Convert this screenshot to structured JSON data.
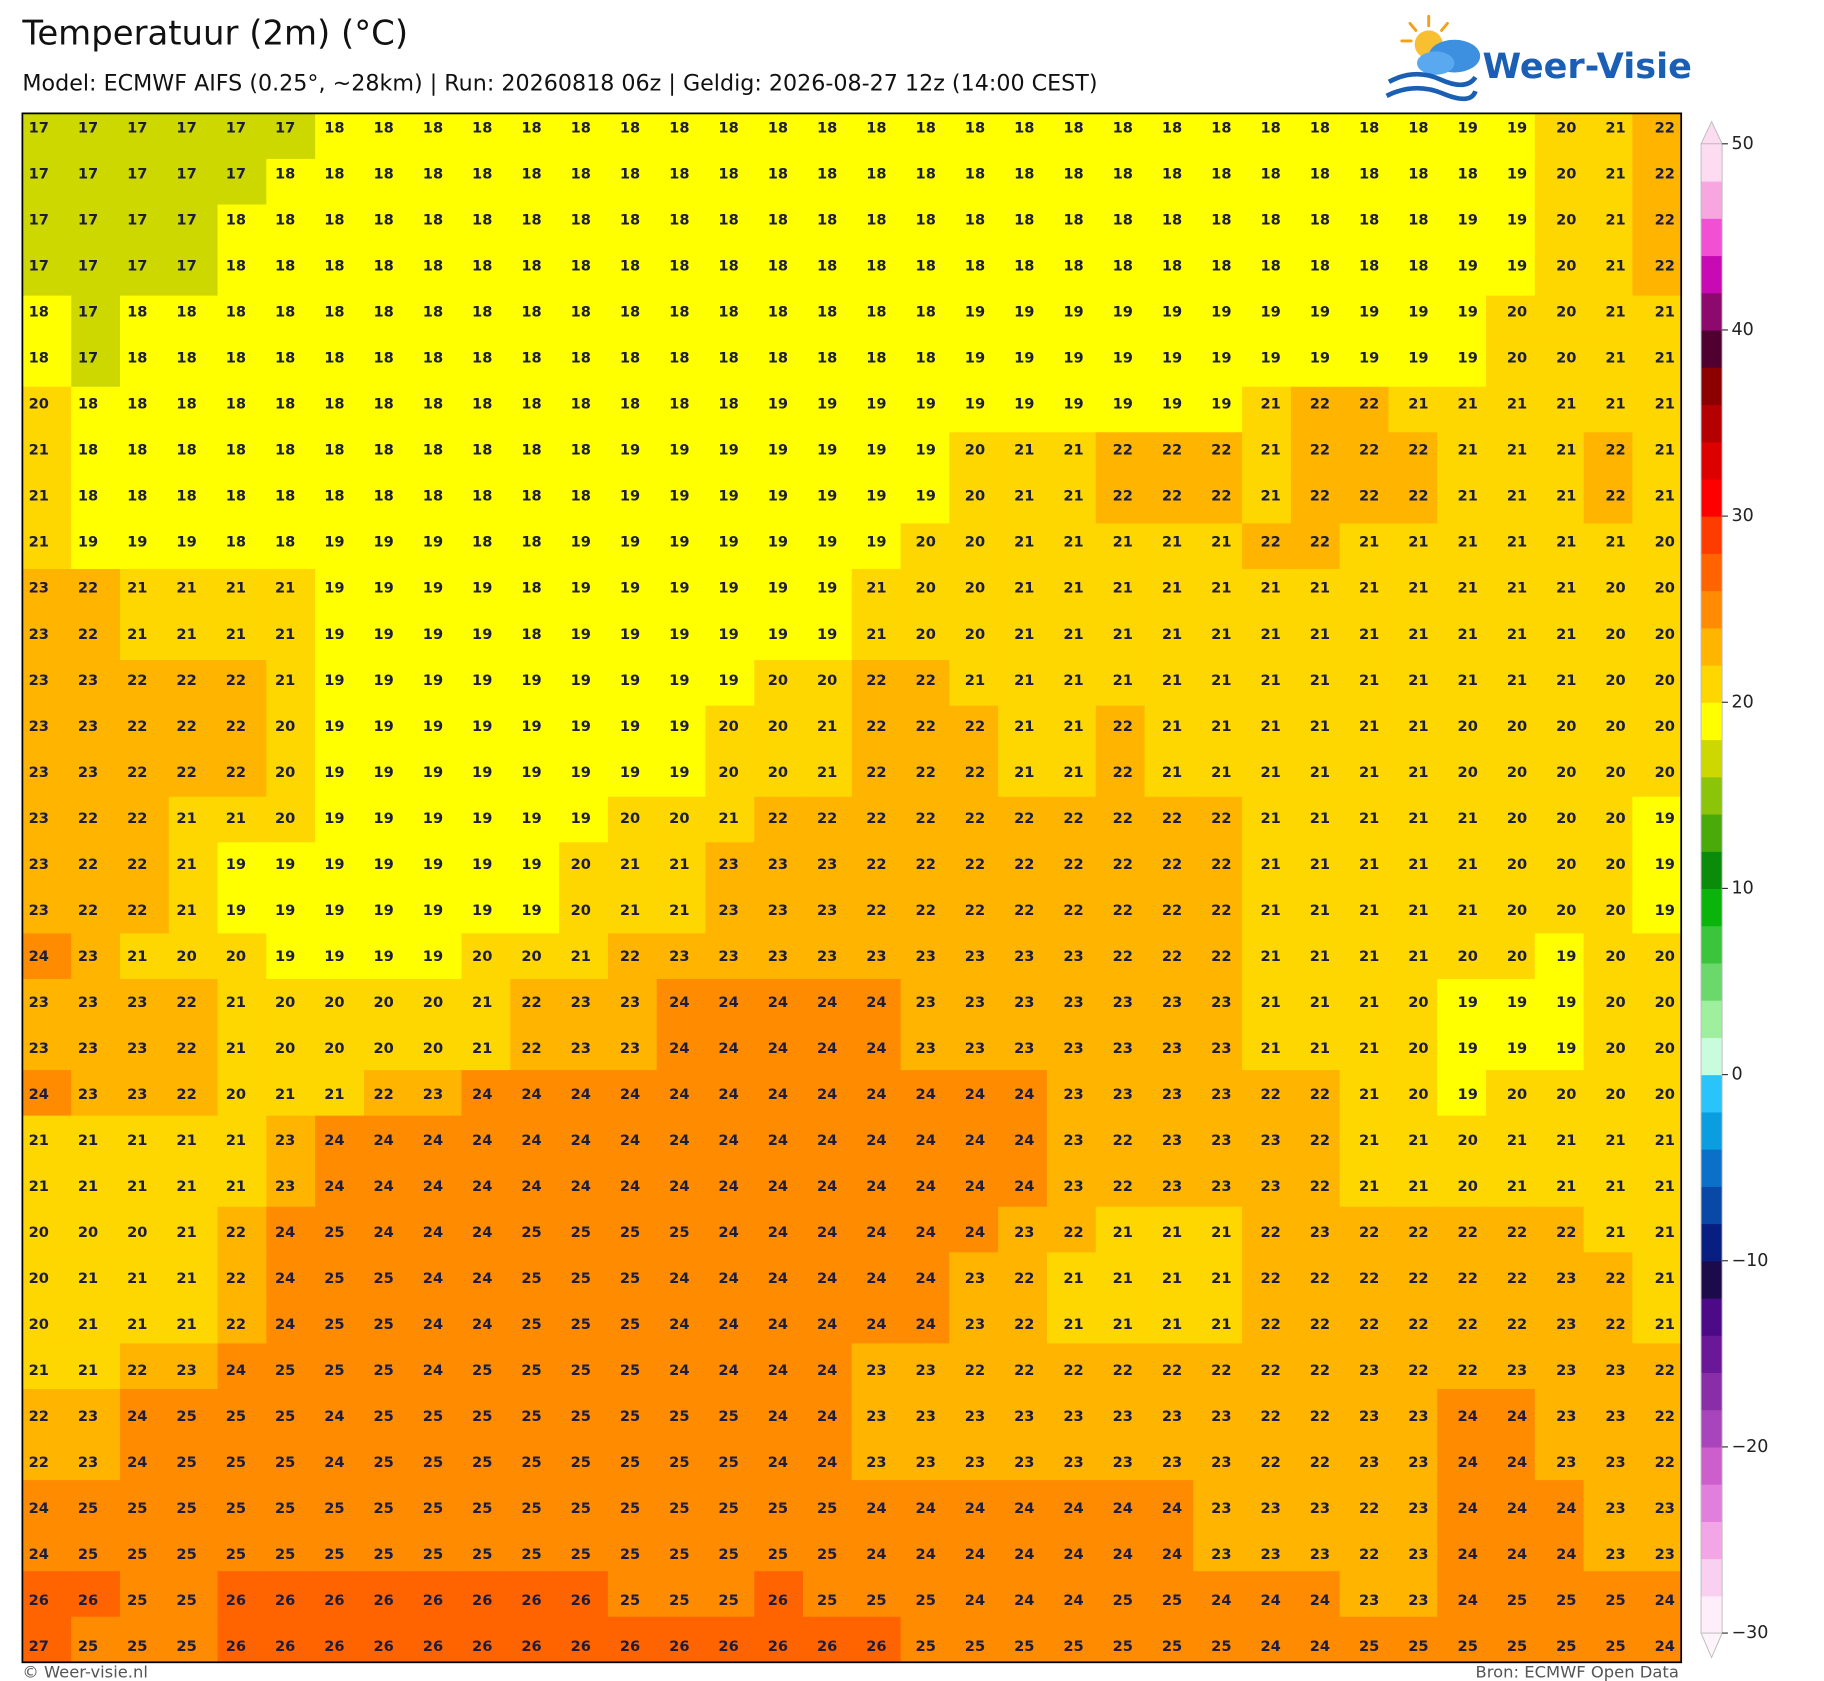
{
  "map": {
    "title": "Temperatuur (2m) (°C)",
    "subtitle": "Model: ECMWF AIFS (0.25°, ~28km)  |  Run: 20260818 06z  |  Geldig: 2026-08-27 12z (14:00 CEST)",
    "logo": "Weer-Visie",
    "footer_left": "© Weer-visie.nl",
    "footer_right": "Bron: ECMWF Open Data",
    "grid": [
      [
        17,
        17,
        17,
        17,
        17,
        17,
        18,
        18,
        18,
        18,
        18,
        18,
        18,
        18,
        18,
        18,
        18,
        18,
        18,
        18,
        18,
        18,
        18,
        18,
        18,
        18,
        18,
        18,
        18,
        19,
        19,
        20,
        21,
        22
      ],
      [
        17,
        17,
        17,
        17,
        17,
        18,
        18,
        18,
        18,
        18,
        18,
        18,
        18,
        18,
        18,
        18,
        18,
        18,
        18,
        18,
        18,
        18,
        18,
        18,
        18,
        18,
        18,
        18,
        18,
        18,
        19,
        20,
        21,
        22
      ],
      [
        17,
        17,
        17,
        17,
        18,
        18,
        18,
        18,
        18,
        18,
        18,
        18,
        18,
        18,
        18,
        18,
        18,
        18,
        18,
        18,
        18,
        18,
        18,
        18,
        18,
        18,
        18,
        18,
        18,
        19,
        19,
        20,
        21,
        22
      ],
      [
        17,
        17,
        17,
        17,
        18,
        18,
        18,
        18,
        18,
        18,
        18,
        18,
        18,
        18,
        18,
        18,
        18,
        18,
        18,
        18,
        18,
        18,
        18,
        18,
        18,
        18,
        18,
        18,
        18,
        19,
        19,
        20,
        21,
        22
      ],
      [
        18,
        17,
        18,
        18,
        18,
        18,
        18,
        18,
        18,
        18,
        18,
        18,
        18,
        18,
        18,
        18,
        18,
        18,
        18,
        19,
        19,
        19,
        19,
        19,
        19,
        19,
        19,
        19,
        19,
        19,
        20,
        20,
        21,
        21
      ],
      [
        18,
        17,
        18,
        18,
        18,
        18,
        18,
        18,
        18,
        18,
        18,
        18,
        18,
        18,
        18,
        18,
        18,
        18,
        18,
        19,
        19,
        19,
        19,
        19,
        19,
        19,
        19,
        19,
        19,
        19,
        20,
        20,
        21,
        21
      ],
      [
        20,
        18,
        18,
        18,
        18,
        18,
        18,
        18,
        18,
        18,
        18,
        18,
        18,
        18,
        18,
        19,
        19,
        19,
        19,
        19,
        19,
        19,
        19,
        19,
        19,
        21,
        22,
        22,
        21,
        21,
        21,
        21,
        21,
        21
      ],
      [
        21,
        18,
        18,
        18,
        18,
        18,
        18,
        18,
        18,
        18,
        18,
        18,
        19,
        19,
        19,
        19,
        19,
        19,
        19,
        20,
        21,
        21,
        22,
        22,
        22,
        21,
        22,
        22,
        22,
        21,
        21,
        21,
        22,
        21
      ],
      [
        21,
        18,
        18,
        18,
        18,
        18,
        18,
        18,
        18,
        18,
        18,
        18,
        19,
        19,
        19,
        19,
        19,
        19,
        19,
        20,
        21,
        21,
        22,
        22,
        22,
        21,
        22,
        22,
        22,
        21,
        21,
        21,
        22,
        21
      ],
      [
        21,
        19,
        19,
        19,
        18,
        18,
        19,
        19,
        19,
        18,
        18,
        19,
        19,
        19,
        19,
        19,
        19,
        19,
        20,
        20,
        21,
        21,
        21,
        21,
        21,
        22,
        22,
        21,
        21,
        21,
        21,
        21,
        21,
        20
      ],
      [
        23,
        22,
        21,
        21,
        21,
        21,
        19,
        19,
        19,
        19,
        18,
        19,
        19,
        19,
        19,
        19,
        19,
        21,
        20,
        20,
        21,
        21,
        21,
        21,
        21,
        21,
        21,
        21,
        21,
        21,
        21,
        21,
        20,
        20
      ],
      [
        23,
        22,
        21,
        21,
        21,
        21,
        19,
        19,
        19,
        19,
        18,
        19,
        19,
        19,
        19,
        19,
        19,
        21,
        20,
        20,
        21,
        21,
        21,
        21,
        21,
        21,
        21,
        21,
        21,
        21,
        21,
        21,
        20,
        20
      ],
      [
        23,
        23,
        22,
        22,
        22,
        21,
        19,
        19,
        19,
        19,
        19,
        19,
        19,
        19,
        19,
        20,
        20,
        22,
        22,
        21,
        21,
        21,
        21,
        21,
        21,
        21,
        21,
        21,
        21,
        21,
        21,
        21,
        20,
        20
      ],
      [
        23,
        23,
        22,
        22,
        22,
        20,
        19,
        19,
        19,
        19,
        19,
        19,
        19,
        19,
        20,
        20,
        21,
        22,
        22,
        22,
        21,
        21,
        22,
        21,
        21,
        21,
        21,
        21,
        21,
        20,
        20,
        20,
        20,
        20
      ],
      [
        23,
        23,
        22,
        22,
        22,
        20,
        19,
        19,
        19,
        19,
        19,
        19,
        19,
        19,
        20,
        20,
        21,
        22,
        22,
        22,
        21,
        21,
        22,
        21,
        21,
        21,
        21,
        21,
        21,
        20,
        20,
        20,
        20,
        20
      ],
      [
        23,
        22,
        22,
        21,
        21,
        20,
        19,
        19,
        19,
        19,
        19,
        19,
        20,
        20,
        21,
        22,
        22,
        22,
        22,
        22,
        22,
        22,
        22,
        22,
        22,
        21,
        21,
        21,
        21,
        21,
        20,
        20,
        20,
        19
      ],
      [
        23,
        22,
        22,
        21,
        19,
        19,
        19,
        19,
        19,
        19,
        19,
        20,
        21,
        21,
        23,
        23,
        23,
        22,
        22,
        22,
        22,
        22,
        22,
        22,
        22,
        21,
        21,
        21,
        21,
        21,
        20,
        20,
        20,
        19
      ],
      [
        23,
        22,
        22,
        21,
        19,
        19,
        19,
        19,
        19,
        19,
        19,
        20,
        21,
        21,
        23,
        23,
        23,
        22,
        22,
        22,
        22,
        22,
        22,
        22,
        22,
        21,
        21,
        21,
        21,
        21,
        20,
        20,
        20,
        19
      ],
      [
        24,
        23,
        21,
        20,
        20,
        19,
        19,
        19,
        19,
        20,
        20,
        21,
        22,
        23,
        23,
        23,
        23,
        23,
        23,
        23,
        23,
        23,
        22,
        22,
        22,
        21,
        21,
        21,
        21,
        20,
        20,
        19,
        20,
        20
      ],
      [
        23,
        23,
        23,
        22,
        21,
        20,
        20,
        20,
        20,
        21,
        22,
        23,
        23,
        24,
        24,
        24,
        24,
        24,
        23,
        23,
        23,
        23,
        23,
        23,
        23,
        21,
        21,
        21,
        20,
        19,
        19,
        19,
        20,
        20
      ],
      [
        23,
        23,
        23,
        22,
        21,
        20,
        20,
        20,
        20,
        21,
        22,
        23,
        23,
        24,
        24,
        24,
        24,
        24,
        23,
        23,
        23,
        23,
        23,
        23,
        23,
        21,
        21,
        21,
        20,
        19,
        19,
        19,
        20,
        20
      ],
      [
        24,
        23,
        23,
        22,
        20,
        21,
        21,
        22,
        23,
        24,
        24,
        24,
        24,
        24,
        24,
        24,
        24,
        24,
        24,
        24,
        24,
        23,
        23,
        23,
        23,
        22,
        22,
        21,
        20,
        19,
        20,
        20,
        20,
        20
      ],
      [
        21,
        21,
        21,
        21,
        21,
        23,
        24,
        24,
        24,
        24,
        24,
        24,
        24,
        24,
        24,
        24,
        24,
        24,
        24,
        24,
        24,
        23,
        22,
        23,
        23,
        23,
        22,
        21,
        21,
        20,
        21,
        21,
        21,
        21
      ],
      [
        21,
        21,
        21,
        21,
        21,
        23,
        24,
        24,
        24,
        24,
        24,
        24,
        24,
        24,
        24,
        24,
        24,
        24,
        24,
        24,
        24,
        23,
        22,
        23,
        23,
        23,
        22,
        21,
        21,
        20,
        21,
        21,
        21,
        21
      ],
      [
        20,
        20,
        20,
        21,
        22,
        24,
        25,
        24,
        24,
        24,
        25,
        25,
        25,
        25,
        24,
        24,
        24,
        24,
        24,
        24,
        23,
        22,
        21,
        21,
        21,
        22,
        23,
        22,
        22,
        22,
        22,
        22,
        21,
        21
      ],
      [
        20,
        21,
        21,
        21,
        22,
        24,
        25,
        25,
        24,
        24,
        25,
        25,
        25,
        24,
        24,
        24,
        24,
        24,
        24,
        23,
        22,
        21,
        21,
        21,
        21,
        22,
        22,
        22,
        22,
        22,
        22,
        23,
        22,
        21
      ],
      [
        20,
        21,
        21,
        21,
        22,
        24,
        25,
        25,
        24,
        24,
        25,
        25,
        25,
        24,
        24,
        24,
        24,
        24,
        24,
        23,
        22,
        21,
        21,
        21,
        21,
        22,
        22,
        22,
        22,
        22,
        22,
        23,
        22,
        21
      ],
      [
        21,
        21,
        22,
        23,
        24,
        25,
        25,
        25,
        24,
        25,
        25,
        25,
        25,
        24,
        24,
        24,
        24,
        23,
        23,
        22,
        22,
        22,
        22,
        22,
        22,
        22,
        22,
        23,
        22,
        22,
        23,
        23,
        23,
        22
      ],
      [
        22,
        23,
        24,
        25,
        25,
        25,
        24,
        25,
        25,
        25,
        25,
        25,
        25,
        25,
        25,
        24,
        24,
        23,
        23,
        23,
        23,
        23,
        23,
        23,
        23,
        22,
        22,
        23,
        23,
        24,
        24,
        23,
        23,
        22
      ],
      [
        22,
        23,
        24,
        25,
        25,
        25,
        24,
        25,
        25,
        25,
        25,
        25,
        25,
        25,
        25,
        24,
        24,
        23,
        23,
        23,
        23,
        23,
        23,
        23,
        23,
        22,
        22,
        23,
        23,
        24,
        24,
        23,
        23,
        22
      ],
      [
        24,
        25,
        25,
        25,
        25,
        25,
        25,
        25,
        25,
        25,
        25,
        25,
        25,
        25,
        25,
        25,
        25,
        24,
        24,
        24,
        24,
        24,
        24,
        24,
        23,
        23,
        23,
        22,
        23,
        24,
        24,
        24,
        23,
        23
      ],
      [
        24,
        25,
        25,
        25,
        25,
        25,
        25,
        25,
        25,
        25,
        25,
        25,
        25,
        25,
        25,
        25,
        25,
        24,
        24,
        24,
        24,
        24,
        24,
        24,
        23,
        23,
        23,
        22,
        23,
        24,
        24,
        24,
        23,
        23
      ],
      [
        26,
        26,
        25,
        25,
        26,
        26,
        26,
        26,
        26,
        26,
        26,
        26,
        25,
        25,
        25,
        26,
        25,
        25,
        25,
        24,
        24,
        24,
        25,
        25,
        24,
        24,
        24,
        23,
        23,
        24,
        25,
        25,
        25,
        24
      ],
      [
        27,
        25,
        25,
        25,
        26,
        26,
        26,
        26,
        26,
        26,
        26,
        26,
        26,
        26,
        26,
        26,
        26,
        26,
        25,
        25,
        25,
        25,
        25,
        25,
        25,
        24,
        24,
        25,
        25,
        25,
        25,
        25,
        25,
        24
      ]
    ],
    "colorbar": {
      "lim": [
        -30,
        50
      ],
      "ticks": [
        50,
        40,
        30,
        20,
        10,
        0,
        {
          "value": -10,
          "label": "−10"
        },
        {
          "value": -20,
          "label": "−20"
        },
        {
          "value": -30,
          "label": "−30"
        }
      ],
      "colors": [
        "#fdeefa",
        "#f9d0f0",
        "#f2a6e6",
        "#e27fdc",
        "#cc5fcc",
        "#a845bc",
        "#8a2ea8",
        "#6a1898",
        "#4c0a88",
        "#1c0a4a",
        "#081e80",
        "#0a48a8",
        "#0a70c8",
        "#0a9ee0",
        "#28c4fa",
        "#c8fcdc",
        "#9ef09e",
        "#6ad86a",
        "#3cc43c",
        "#0ab40a",
        "#0a8c0a",
        "#4aaa0a",
        "#8cc40a",
        "#ccd800",
        "#ffff00",
        "#ffd700",
        "#ffb400",
        "#ff8c00",
        "#ff6400",
        "#ff3c00",
        "#ff0000",
        "#dc0000",
        "#b40000",
        "#8c0000",
        "#500030",
        "#8c0a6e",
        "#c80ab4",
        "#f050d2",
        "#f8a6e0",
        "#fddcf2"
      ]
    }
  }
}
